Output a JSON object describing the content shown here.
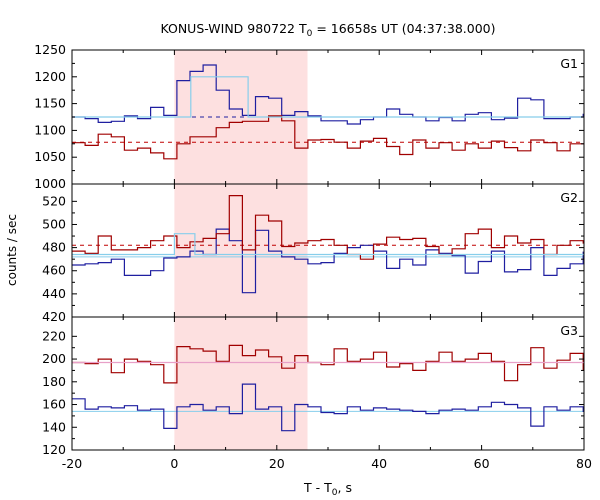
{
  "chart_data": {
    "type": "line",
    "title_main": "KONUS-WIND 980722 T",
    "title_sub": "0",
    "title_rest": " = 16658s UT (04:37:38.000)",
    "xlabel_main": "T - T",
    "xlabel_sub": "0",
    "xlabel_rest": ", s",
    "ylabel": "counts / sec",
    "xlim": [
      -20,
      80
    ],
    "x_ticks": [
      -20,
      0,
      20,
      40,
      60,
      80
    ],
    "bin_width": 2.56,
    "bin_start": -20,
    "highlight_interval": [
      0,
      26
    ],
    "colors": {
      "dark_red": "#a00000",
      "dark_blue": "#1f1fa0",
      "light_blue": "#87ceeb",
      "pink_line": "#e8a0c8",
      "highlight": "#fde0e0",
      "blue_dash": "#1f1fa0",
      "red_dash": "#c00000"
    },
    "panels": [
      {
        "label": "G1",
        "ylim": [
          1000,
          1250
        ],
        "y_ticks": [
          1000,
          1050,
          1100,
          1150,
          1200,
          1250
        ],
        "series": [
          {
            "color_key": "dark_blue",
            "values": [
              1125,
              1122,
              1115,
              1117,
              1127,
              1122,
              1143,
              1128,
              1193,
              1210,
              1222,
              1175,
              1140,
              1128,
              1163,
              1160,
              1128,
              1135,
              1127,
              1118,
              1118,
              1112,
              1120,
              1125,
              1140,
              1130,
              1125,
              1118,
              1124,
              1118,
              1130,
              1133,
              1120,
              1123,
              1160,
              1157,
              1122,
              1122,
              1125,
              1130
            ]
          },
          {
            "color_key": "dark_red",
            "values": [
              1077,
              1072,
              1093,
              1088,
              1063,
              1067,
              1058,
              1047,
              1075,
              1088,
              1088,
              1105,
              1115,
              1117,
              1117,
              1127,
              1118,
              1067,
              1082,
              1083,
              1078,
              1067,
              1080,
              1085,
              1070,
              1055,
              1082,
              1067,
              1077,
              1063,
              1075,
              1067,
              1080,
              1068,
              1062,
              1082,
              1077,
              1062,
              1075,
              1075
            ]
          },
          {
            "color_key": "light_blue",
            "step": [
              [
                -20,
                1125
              ],
              [
                3.2,
                1125
              ],
              [
                3.2,
                1200
              ],
              [
                14.4,
                1200
              ],
              [
                14.4,
                1125
              ],
              [
                80,
                1125
              ]
            ]
          }
        ],
        "mean_lines": [
          {
            "color_key": "blue_dash",
            "value": 1125,
            "dashed": true
          },
          {
            "color_key": "red_dash",
            "value": 1078,
            "dashed": true
          }
        ]
      },
      {
        "label": "G2",
        "ylim": [
          420,
          535
        ],
        "y_ticks": [
          420,
          440,
          460,
          480,
          500,
          520
        ],
        "series": [
          {
            "color_key": "dark_blue",
            "values": [
              465,
              466,
              467,
              470,
              456,
              456,
              460,
              471,
              472,
              477,
              474,
              496,
              486,
              441,
              495,
              477,
              472,
              470,
              466,
              467,
              475,
              480,
              482,
              477,
              462,
              470,
              465,
              478,
              475,
              473,
              458,
              468,
              477,
              459,
              461,
              480,
              456,
              462,
              466,
              476
            ]
          },
          {
            "color_key": "dark_red",
            "values": [
              477,
              475,
              490,
              478,
              478,
              480,
              486,
              490,
              480,
              485,
              488,
              492,
              525,
              478,
              508,
              503,
              481,
              484,
              486,
              487,
              482,
              474,
              470,
              483,
              489,
              487,
              488,
              481,
              474,
              479,
              492,
              496,
              480,
              490,
              484,
              487,
              474,
              482,
              486,
              484
            ]
          },
          {
            "color_key": "light_blue",
            "step": [
              [
                -20,
                474
              ],
              [
                0,
                474
              ],
              [
                0,
                492
              ],
              [
                4,
                492
              ],
              [
                4,
                474
              ],
              [
                80,
                474
              ]
            ]
          }
        ],
        "mean_lines": [
          {
            "color_key": "red_dash",
            "value": 482,
            "dashed": true
          },
          {
            "color_key": "light_blue",
            "value": 472,
            "dashed": false
          }
        ]
      },
      {
        "label": "G3",
        "ylim": [
          120,
          237
        ],
        "y_ticks": [
          120,
          140,
          160,
          180,
          200,
          220
        ],
        "series": [
          {
            "color_key": "dark_blue",
            "values": [
              165,
              156,
              158,
              157,
              159,
              155,
              156,
              139,
              158,
              160,
              155,
              158,
              152,
              178,
              156,
              158,
              137,
              160,
              158,
              153,
              152,
              158,
              155,
              157,
              156,
              155,
              154,
              152,
              155,
              156,
              155,
              158,
              162,
              160,
              157,
              141,
              158,
              155,
              158,
              154
            ]
          },
          {
            "color_key": "dark_red",
            "values": [
              197,
              196,
              200,
              188,
              200,
              198,
              195,
              179,
              211,
              209,
              207,
              198,
              212,
              203,
              208,
              202,
              192,
              203,
              197,
              195,
              209,
              198,
              200,
              206,
              193,
              196,
              190,
              198,
              206,
              198,
              200,
              205,
              198,
              181,
              195,
              210,
              192,
              199,
              205,
              190
            ]
          },
          {
            "color_key": "pink_line",
            "step": [
              [
                -20,
                197
              ],
              [
                80,
                197
              ]
            ]
          }
        ],
        "mean_lines": [
          {
            "color_key": "light_blue",
            "value": 154,
            "dashed": false
          }
        ]
      }
    ]
  }
}
